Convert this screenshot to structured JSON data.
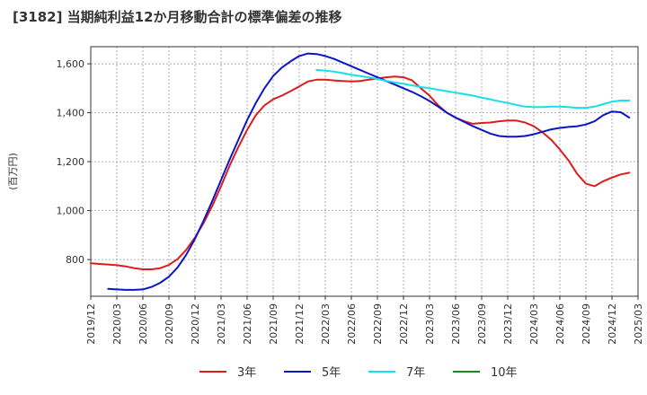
{
  "chart_data": {
    "type": "line",
    "title": "[3182]  当期純利益12か月移動合計の標準偏差の推移",
    "ylabel": "(百万円)",
    "xlabel": "",
    "ylim": [
      650,
      1670
    ],
    "yticks": [
      800,
      1000,
      1200,
      1400,
      1600
    ],
    "ytick_labels": [
      "800",
      "1,000",
      "1,200",
      "1,400",
      "1,600"
    ],
    "xticks": [
      "2019/12",
      "2020/03",
      "2020/06",
      "2020/09",
      "2020/12",
      "2021/03",
      "2021/06",
      "2021/09",
      "2021/12",
      "2022/03",
      "2022/06",
      "2022/09",
      "2022/12",
      "2023/03",
      "2023/06",
      "2023/09",
      "2023/12",
      "2024/03",
      "2024/06",
      "2024/09",
      "2024/12",
      "2025/03"
    ],
    "grid": true,
    "legend_position": "bottom",
    "series": [
      {
        "name": "3年",
        "color": "#dd1c1c",
        "points": [
          [
            "2019/12",
            785
          ],
          [
            "2020/01",
            782
          ],
          [
            "2020/02",
            780
          ],
          [
            "2020/03",
            777
          ],
          [
            "2020/04",
            772
          ],
          [
            "2020/05",
            765
          ],
          [
            "2020/06",
            760
          ],
          [
            "2020/07",
            760
          ],
          [
            "2020/08",
            765
          ],
          [
            "2020/09",
            778
          ],
          [
            "2020/10",
            802
          ],
          [
            "2020/11",
            840
          ],
          [
            "2020/12",
            890
          ],
          [
            "2021/01",
            950
          ],
          [
            "2021/02",
            1020
          ],
          [
            "2021/03",
            1100
          ],
          [
            "2021/04",
            1185
          ],
          [
            "2021/05",
            1260
          ],
          [
            "2021/06",
            1330
          ],
          [
            "2021/07",
            1390
          ],
          [
            "2021/08",
            1430
          ],
          [
            "2021/09",
            1455
          ],
          [
            "2021/10",
            1470
          ],
          [
            "2021/11",
            1488
          ],
          [
            "2021/12",
            1508
          ],
          [
            "2022/01",
            1528
          ],
          [
            "2022/02",
            1535
          ],
          [
            "2022/03",
            1535
          ],
          [
            "2022/04",
            1532
          ],
          [
            "2022/05",
            1530
          ],
          [
            "2022/06",
            1528
          ],
          [
            "2022/07",
            1530
          ],
          [
            "2022/08",
            1535
          ],
          [
            "2022/09",
            1540
          ],
          [
            "2022/10",
            1545
          ],
          [
            "2022/11",
            1548
          ],
          [
            "2022/12",
            1545
          ],
          [
            "2023/01",
            1532
          ],
          [
            "2023/02",
            1500
          ],
          [
            "2023/03",
            1470
          ],
          [
            "2023/04",
            1430
          ],
          [
            "2023/05",
            1400
          ],
          [
            "2023/06",
            1380
          ],
          [
            "2023/07",
            1365
          ],
          [
            "2023/08",
            1355
          ],
          [
            "2023/09",
            1358
          ],
          [
            "2023/10",
            1360
          ],
          [
            "2023/11",
            1365
          ],
          [
            "2023/12",
            1368
          ],
          [
            "2024/01",
            1368
          ],
          [
            "2024/02",
            1360
          ],
          [
            "2024/03",
            1345
          ],
          [
            "2024/04",
            1320
          ],
          [
            "2024/05",
            1290
          ],
          [
            "2024/06",
            1250
          ],
          [
            "2024/07",
            1205
          ],
          [
            "2024/08",
            1150
          ],
          [
            "2024/09",
            1110
          ],
          [
            "2024/10",
            1100
          ],
          [
            "2024/11",
            1120
          ],
          [
            "2024/12",
            1135
          ],
          [
            "2025/01",
            1148
          ],
          [
            "2025/02",
            1155
          ]
        ]
      },
      {
        "name": "5年",
        "color": "#0a16c8",
        "points": [
          [
            "2020/02",
            680
          ],
          [
            "2020/03",
            678
          ],
          [
            "2020/04",
            676
          ],
          [
            "2020/05",
            676
          ],
          [
            "2020/06",
            678
          ],
          [
            "2020/07",
            688
          ],
          [
            "2020/08",
            705
          ],
          [
            "2020/09",
            730
          ],
          [
            "2020/10",
            768
          ],
          [
            "2020/11",
            820
          ],
          [
            "2020/12",
            885
          ],
          [
            "2021/01",
            960
          ],
          [
            "2021/02",
            1040
          ],
          [
            "2021/03",
            1125
          ],
          [
            "2021/04",
            1210
          ],
          [
            "2021/05",
            1290
          ],
          [
            "2021/06",
            1370
          ],
          [
            "2021/07",
            1440
          ],
          [
            "2021/08",
            1500
          ],
          [
            "2021/09",
            1550
          ],
          [
            "2021/10",
            1585
          ],
          [
            "2021/11",
            1610
          ],
          [
            "2021/12",
            1632
          ],
          [
            "2022/01",
            1642
          ],
          [
            "2022/02",
            1640
          ],
          [
            "2022/03",
            1632
          ],
          [
            "2022/04",
            1620
          ],
          [
            "2022/05",
            1605
          ],
          [
            "2022/06",
            1590
          ],
          [
            "2022/07",
            1575
          ],
          [
            "2022/08",
            1560
          ],
          [
            "2022/09",
            1545
          ],
          [
            "2022/10",
            1530
          ],
          [
            "2022/11",
            1515
          ],
          [
            "2022/12",
            1500
          ],
          [
            "2023/01",
            1485
          ],
          [
            "2023/02",
            1468
          ],
          [
            "2023/03",
            1448
          ],
          [
            "2023/04",
            1425
          ],
          [
            "2023/05",
            1400
          ],
          [
            "2023/06",
            1380
          ],
          [
            "2023/07",
            1362
          ],
          [
            "2023/08",
            1345
          ],
          [
            "2023/09",
            1330
          ],
          [
            "2023/10",
            1315
          ],
          [
            "2023/11",
            1305
          ],
          [
            "2023/12",
            1302
          ],
          [
            "2024/01",
            1302
          ],
          [
            "2024/02",
            1305
          ],
          [
            "2024/03",
            1312
          ],
          [
            "2024/04",
            1322
          ],
          [
            "2024/05",
            1332
          ],
          [
            "2024/06",
            1338
          ],
          [
            "2024/07",
            1342
          ],
          [
            "2024/08",
            1345
          ],
          [
            "2024/09",
            1352
          ],
          [
            "2024/10",
            1365
          ],
          [
            "2024/11",
            1390
          ],
          [
            "2024/12",
            1405
          ],
          [
            "2025/01",
            1402
          ],
          [
            "2025/02",
            1380
          ]
        ]
      },
      {
        "name": "7年",
        "color": "#16e0e8",
        "points": [
          [
            "2022/02",
            1575
          ],
          [
            "2022/03",
            1572
          ],
          [
            "2022/04",
            1568
          ],
          [
            "2022/05",
            1562
          ],
          [
            "2022/06",
            1555
          ],
          [
            "2022/07",
            1550
          ],
          [
            "2022/08",
            1545
          ],
          [
            "2022/09",
            1538
          ],
          [
            "2022/10",
            1530
          ],
          [
            "2022/11",
            1524
          ],
          [
            "2022/12",
            1518
          ],
          [
            "2023/01",
            1512
          ],
          [
            "2023/02",
            1505
          ],
          [
            "2023/03",
            1500
          ],
          [
            "2023/04",
            1494
          ],
          [
            "2023/05",
            1488
          ],
          [
            "2023/06",
            1482
          ],
          [
            "2023/07",
            1476
          ],
          [
            "2023/08",
            1470
          ],
          [
            "2023/09",
            1462
          ],
          [
            "2023/10",
            1455
          ],
          [
            "2023/11",
            1447
          ],
          [
            "2023/12",
            1440
          ],
          [
            "2024/01",
            1432
          ],
          [
            "2024/02",
            1425
          ],
          [
            "2024/03",
            1423
          ],
          [
            "2024/04",
            1423
          ],
          [
            "2024/05",
            1425
          ],
          [
            "2024/06",
            1425
          ],
          [
            "2024/07",
            1423
          ],
          [
            "2024/08",
            1420
          ],
          [
            "2024/09",
            1420
          ],
          [
            "2024/10",
            1425
          ],
          [
            "2024/11",
            1435
          ],
          [
            "2024/12",
            1445
          ],
          [
            "2025/01",
            1450
          ],
          [
            "2025/02",
            1450
          ]
        ]
      },
      {
        "name": "10年",
        "color": "#1a8a1a",
        "points": []
      }
    ]
  }
}
